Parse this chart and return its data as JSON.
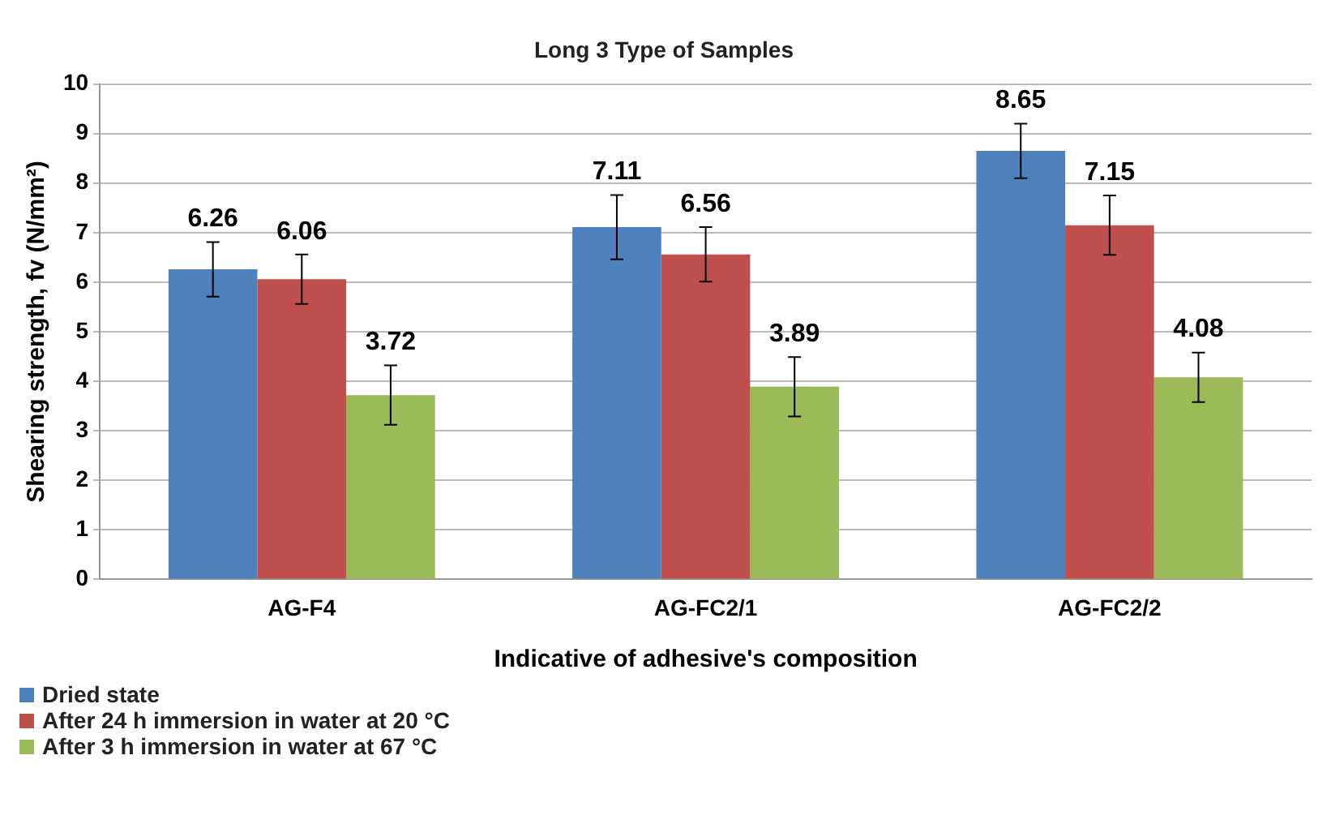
{
  "chart_data": {
    "type": "bar",
    "title": "Long 3 Type of Samples",
    "xlabel": "Indicative of adhesive's composition",
    "ylabel": "Shearing strength, fv (N/mm²)",
    "categories": [
      "AG-F4",
      "AG-FC2/1",
      "AG-FC2/2"
    ],
    "series": [
      {
        "name": "Dried state",
        "color": "#4f81bd",
        "values": [
          6.26,
          7.11,
          8.65
        ],
        "errors": [
          0.55,
          0.65,
          0.55
        ]
      },
      {
        "name": "After 24 h immersion in water at 20 °C",
        "color": "#c0504d",
        "values": [
          6.06,
          6.56,
          7.15
        ],
        "errors": [
          0.5,
          0.55,
          0.6
        ]
      },
      {
        "name": "After 3 h immersion in water at 67 °C",
        "color": "#9bbb59",
        "values": [
          3.72,
          3.89,
          4.08
        ],
        "errors": [
          0.6,
          0.6,
          0.5
        ]
      }
    ],
    "ylim": [
      0,
      10
    ],
    "yticks": [
      0,
      1,
      2,
      3,
      4,
      5,
      6,
      7,
      8,
      9,
      10
    ],
    "grid": "y",
    "legend": "bottom left",
    "data_labels": true
  }
}
